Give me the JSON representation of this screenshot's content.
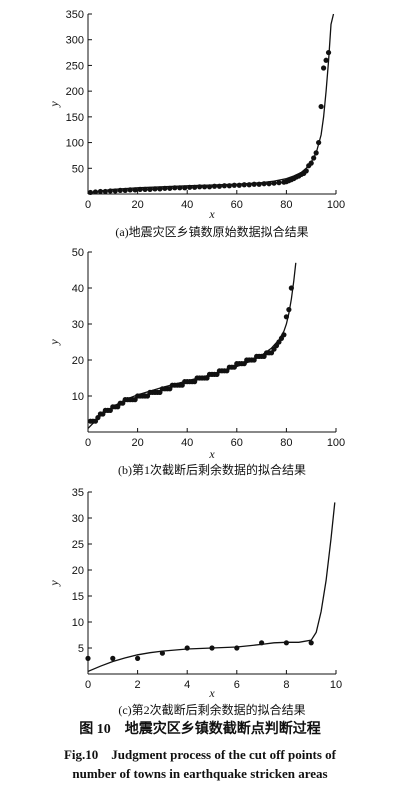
{
  "figure": {
    "caption_zh": "图 10　地震灾区乡镇数截断点判断过程",
    "caption_en_line1": "Fig.10　Judgment process of the cut off points of",
    "caption_en_line2": "number of towns in earthquake stricken areas"
  },
  "chart_data": [
    {
      "type": "scatter",
      "subtitle": "(a)地震灾区乡镇数原始数据拟合结果",
      "xlabel": "x",
      "ylabel": "y",
      "xlim": [
        0,
        100
      ],
      "ylim": [
        0,
        350
      ],
      "xticks": [
        0,
        20,
        40,
        60,
        80,
        100
      ],
      "yticks": [
        0,
        50,
        100,
        150,
        200,
        250,
        300,
        350
      ],
      "xtick_labels": [
        "0",
        "20",
        "40",
        "60",
        "80",
        "100"
      ],
      "ytick_labels": [
        "",
        "50",
        "100",
        "150",
        "200",
        "250",
        "300",
        "350"
      ],
      "points": {
        "x": [
          1,
          3,
          5,
          7,
          9,
          11,
          13,
          15,
          17,
          19,
          21,
          23,
          25,
          27,
          29,
          31,
          33,
          35,
          37,
          39,
          41,
          43,
          45,
          47,
          49,
          51,
          53,
          55,
          57,
          59,
          61,
          63,
          65,
          67,
          69,
          71,
          73,
          75,
          77,
          79,
          80,
          81,
          82,
          83,
          84,
          85,
          86,
          87,
          88,
          89,
          90,
          91,
          92,
          93,
          94,
          95,
          96,
          97
        ],
        "y": [
          3,
          4,
          5,
          5,
          6,
          6,
          7,
          7,
          8,
          8,
          9,
          9,
          9,
          10,
          10,
          11,
          11,
          12,
          12,
          12,
          13,
          13,
          14,
          14,
          14,
          15,
          15,
          16,
          16,
          17,
          17,
          18,
          18,
          19,
          19,
          20,
          20,
          21,
          22,
          23,
          24,
          26,
          28,
          30,
          33,
          35,
          38,
          40,
          45,
          55,
          60,
          70,
          80,
          100,
          170,
          245,
          260,
          275
        ]
      },
      "fit_curve": {
        "x": [
          0,
          5,
          10,
          20,
          30,
          40,
          50,
          60,
          70,
          75,
          80,
          83,
          86,
          88,
          90,
          92,
          94,
          95,
          96,
          97,
          98,
          99
        ],
        "y": [
          1,
          6,
          9,
          12,
          14,
          16,
          17.5,
          19,
          22,
          25,
          30,
          35,
          42,
          50,
          62,
          80,
          115,
          150,
          200,
          260,
          330,
          350
        ]
      }
    },
    {
      "type": "scatter",
      "subtitle": "(b)第1次截断后剩余数据的拟合结果",
      "xlabel": "x",
      "ylabel": "y",
      "xlim": [
        0,
        100
      ],
      "ylim": [
        0,
        50
      ],
      "xticks": [
        0,
        20,
        40,
        60,
        80,
        100
      ],
      "yticks": [
        0,
        10,
        20,
        30,
        40,
        50
      ],
      "xtick_labels": [
        "0",
        "20",
        "40",
        "60",
        "80",
        "100"
      ],
      "ytick_labels": [
        "",
        "10",
        "20",
        "30",
        "40",
        "50"
      ],
      "points": {
        "x": [
          1,
          2,
          3,
          4,
          5,
          6,
          7,
          8,
          9,
          10,
          11,
          12,
          13,
          14,
          15,
          16,
          17,
          18,
          19,
          20,
          21,
          22,
          23,
          24,
          25,
          26,
          27,
          28,
          29,
          30,
          31,
          32,
          33,
          34,
          35,
          36,
          37,
          38,
          39,
          40,
          41,
          42,
          43,
          44,
          45,
          46,
          47,
          48,
          49,
          50,
          51,
          52,
          53,
          54,
          55,
          56,
          57,
          58,
          59,
          60,
          61,
          62,
          63,
          64,
          65,
          66,
          67,
          68,
          69,
          70,
          71,
          72,
          73,
          74,
          75,
          76,
          77,
          78,
          79,
          80,
          81,
          82
        ],
        "y": [
          3,
          3,
          3,
          4,
          5,
          5,
          6,
          6,
          6,
          7,
          7,
          7,
          8,
          8,
          9,
          9,
          9,
          9,
          9,
          10,
          10,
          10,
          10,
          10,
          11,
          11,
          11,
          11,
          11,
          12,
          12,
          12,
          12,
          13,
          13,
          13,
          13,
          13,
          14,
          14,
          14,
          14,
          14,
          15,
          15,
          15,
          15,
          15,
          16,
          16,
          16,
          16,
          17,
          17,
          17,
          17,
          18,
          18,
          18,
          19,
          19,
          19,
          19,
          20,
          20,
          20,
          20,
          21,
          21,
          21,
          21,
          22,
          22,
          22,
          23,
          24,
          25,
          26,
          27,
          32,
          34,
          40
        ]
      },
      "fit_curve": {
        "x": [
          0,
          5,
          10,
          15,
          20,
          30,
          40,
          50,
          60,
          65,
          70,
          74,
          77,
          79,
          80,
          81,
          82,
          83,
          83.8
        ],
        "y": [
          1,
          4.5,
          7,
          9,
          10.3,
          12.4,
          14.2,
          16,
          18.2,
          19.5,
          21.3,
          23.3,
          25.6,
          28,
          30,
          33,
          37,
          42,
          47
        ]
      }
    },
    {
      "type": "scatter",
      "subtitle": "(c)第2次截断后剩余数据的拟合结果",
      "xlabel": "x",
      "ylabel": "y",
      "xlim": [
        0,
        10
      ],
      "ylim": [
        0,
        35
      ],
      "xticks": [
        0,
        2,
        4,
        6,
        8,
        10
      ],
      "yticks": [
        0,
        5,
        10,
        15,
        20,
        25,
        30,
        35
      ],
      "xtick_labels": [
        "0",
        "2",
        "4",
        "6",
        "8",
        "10"
      ],
      "ytick_labels": [
        "",
        "5",
        "10",
        "15",
        "20",
        "25",
        "30",
        "35"
      ],
      "points": {
        "x": [
          0,
          1,
          2,
          3,
          4,
          5,
          6,
          7,
          8,
          9
        ],
        "y": [
          3,
          3,
          3,
          4,
          5,
          5,
          5,
          6,
          6,
          6
        ]
      },
      "fit_curve": {
        "x": [
          0,
          0.5,
          1,
          1.5,
          2,
          2.5,
          3,
          4,
          5,
          6,
          7,
          7.5,
          8,
          8.5,
          9,
          9.2,
          9.4,
          9.6,
          9.8,
          9.95
        ],
        "y": [
          0.5,
          1.5,
          2.4,
          3.1,
          3.7,
          4.1,
          4.4,
          4.8,
          5,
          5.2,
          5.7,
          6,
          6.1,
          6.1,
          6.5,
          8,
          12,
          18,
          26,
          33
        ]
      }
    }
  ]
}
